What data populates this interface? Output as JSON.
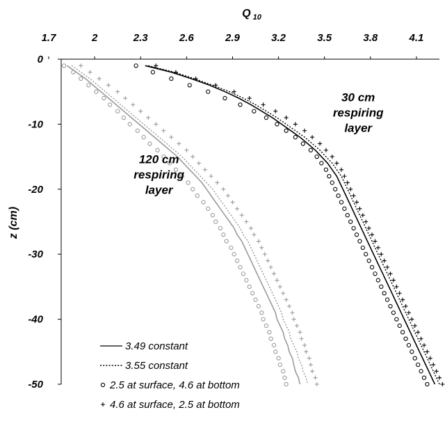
{
  "chart_data": {
    "type": "line",
    "xlabel": "Q",
    "xlabel_sub": "10",
    "ylabel": "z (cm)",
    "xlim": [
      1.7,
      4.25
    ],
    "ylim": [
      -50,
      0
    ],
    "x_ticks": [
      "1.7",
      "2",
      "2.3",
      "2.6",
      "2.9",
      "3.2",
      "3.5",
      "3.8",
      "4.1"
    ],
    "y_ticks": [
      "0",
      "-10",
      "-20",
      "-30",
      "-40",
      "-50"
    ],
    "x_axis_position": "top",
    "grid": false,
    "legend_position": "bottom-left",
    "annotations": [
      {
        "lines": [
          "30 cm",
          "respiring",
          "layer"
        ],
        "anchor": [
          3.72,
          -6.5
        ]
      },
      {
        "lines": [
          "120 cm",
          "respiring",
          "layer"
        ],
        "anchor": [
          2.42,
          -16
        ]
      }
    ],
    "z": [
      -1,
      -2,
      -3,
      -4,
      -5,
      -6,
      -7,
      -8,
      -9,
      -10,
      -11,
      -12,
      -13,
      -14,
      -15,
      -16,
      -17,
      -18,
      -19,
      -20,
      -21,
      -22,
      -23,
      -24,
      -25,
      -26,
      -27,
      -28,
      -29,
      -30,
      -31,
      -32,
      -33,
      -34,
      -35,
      -36,
      -37,
      -38,
      -39,
      -40,
      -41,
      -42,
      -43,
      -44,
      -45,
      -46,
      -47,
      -48,
      -49,
      -50
    ],
    "series": [
      {
        "name": "3.49 constant",
        "style": "solid",
        "color": "#000000",
        "layer": "30 cm",
        "x": [
          2.33,
          2.5,
          2.63,
          2.75,
          2.85,
          2.94,
          3.02,
          3.09,
          3.16,
          3.22,
          3.28,
          3.34,
          3.39,
          3.44,
          3.48,
          3.52,
          3.55,
          3.58,
          3.6,
          3.62,
          3.64,
          3.66,
          3.68,
          3.7,
          3.72,
          3.74,
          3.76,
          3.78,
          3.8,
          3.82,
          3.84,
          3.86,
          3.88,
          3.9,
          3.92,
          3.94,
          3.96,
          3.98,
          4.0,
          4.02,
          4.04,
          4.06,
          4.08,
          4.1,
          4.12,
          4.14,
          4.16,
          4.18,
          4.2,
          4.22
        ]
      },
      {
        "name": "3.55 constant",
        "style": "dotted",
        "color": "#000000",
        "layer": "30 cm",
        "x": [
          2.35,
          2.52,
          2.65,
          2.77,
          2.88,
          2.97,
          3.05,
          3.12,
          3.19,
          3.25,
          3.31,
          3.37,
          3.42,
          3.47,
          3.51,
          3.55,
          3.58,
          3.61,
          3.63,
          3.65,
          3.67,
          3.69,
          3.71,
          3.73,
          3.75,
          3.77,
          3.79,
          3.81,
          3.83,
          3.85,
          3.87,
          3.89,
          3.91,
          3.93,
          3.95,
          3.97,
          3.99,
          4.01,
          4.03,
          4.05,
          4.07,
          4.09,
          4.11,
          4.13,
          4.15,
          4.17,
          4.19,
          4.21,
          4.23,
          4.25
        ]
      },
      {
        "name": "2.5 at surface, 4.6 at bottom",
        "style": "circle",
        "color": "#000000",
        "layer": "30 cm",
        "x": [
          2.27,
          2.38,
          2.5,
          2.62,
          2.74,
          2.85,
          2.95,
          3.04,
          3.12,
          3.19,
          3.25,
          3.31,
          3.36,
          3.41,
          3.45,
          3.48,
          3.51,
          3.53,
          3.55,
          3.57,
          3.59,
          3.61,
          3.63,
          3.65,
          3.67,
          3.69,
          3.71,
          3.73,
          3.75,
          3.77,
          3.79,
          3.81,
          3.83,
          3.85,
          3.87,
          3.89,
          3.91,
          3.93,
          3.95,
          3.97,
          3.99,
          4.01,
          4.03,
          4.05,
          4.07,
          4.09,
          4.11,
          4.13,
          4.15,
          4.17
        ]
      },
      {
        "name": "4.6 at surface, 2.5 at bottom",
        "style": "plus",
        "color": "#000000",
        "layer": "30 cm",
        "x": [
          2.4,
          2.53,
          2.66,
          2.79,
          2.91,
          3.01,
          3.1,
          3.18,
          3.25,
          3.31,
          3.37,
          3.42,
          3.47,
          3.51,
          3.55,
          3.58,
          3.61,
          3.63,
          3.65,
          3.67,
          3.69,
          3.71,
          3.73,
          3.75,
          3.77,
          3.79,
          3.81,
          3.83,
          3.85,
          3.87,
          3.89,
          3.91,
          3.93,
          3.95,
          3.97,
          3.99,
          4.01,
          4.03,
          4.05,
          4.07,
          4.09,
          4.11,
          4.13,
          4.15,
          4.17,
          4.19,
          4.21,
          4.23,
          4.25,
          4.27
        ]
      },
      {
        "name": "3.49 constant",
        "style": "solid",
        "color": "#9a9a9a",
        "layer": "120 cm",
        "x": [
          1.82,
          1.88,
          1.94,
          1.99,
          2.04,
          2.09,
          2.14,
          2.19,
          2.24,
          2.29,
          2.34,
          2.39,
          2.44,
          2.49,
          2.54,
          2.58,
          2.62,
          2.66,
          2.7,
          2.73,
          2.76,
          2.79,
          2.82,
          2.85,
          2.88,
          2.91,
          2.93,
          2.96,
          2.98,
          3.0,
          3.02,
          3.04,
          3.06,
          3.08,
          3.1,
          3.12,
          3.14,
          3.16,
          3.18,
          3.19,
          3.21,
          3.23,
          3.24,
          3.26,
          3.27,
          3.29,
          3.3,
          3.31,
          3.33,
          3.34
        ]
      },
      {
        "name": "3.55 constant",
        "style": "dotted",
        "color": "#9a9a9a",
        "layer": "120 cm",
        "x": [
          1.85,
          1.91,
          1.97,
          2.02,
          2.07,
          2.12,
          2.17,
          2.22,
          2.27,
          2.32,
          2.37,
          2.42,
          2.47,
          2.52,
          2.57,
          2.61,
          2.65,
          2.69,
          2.73,
          2.77,
          2.8,
          2.83,
          2.86,
          2.89,
          2.92,
          2.95,
          2.97,
          3.0,
          3.02,
          3.04,
          3.06,
          3.08,
          3.1,
          3.12,
          3.14,
          3.16,
          3.18,
          3.2,
          3.22,
          3.23,
          3.25,
          3.27,
          3.28,
          3.3,
          3.32,
          3.33,
          3.35,
          3.36,
          3.38,
          3.39
        ]
      },
      {
        "name": "2.5 at surface, 4.6 at bottom",
        "style": "circle",
        "color": "#9a9a9a",
        "layer": "120 cm",
        "x": [
          1.8,
          1.86,
          1.91,
          1.96,
          2.01,
          2.06,
          2.1,
          2.15,
          2.19,
          2.23,
          2.28,
          2.32,
          2.36,
          2.41,
          2.45,
          2.49,
          2.53,
          2.57,
          2.61,
          2.64,
          2.67,
          2.71,
          2.74,
          2.77,
          2.79,
          2.82,
          2.84,
          2.86,
          2.89,
          2.91,
          2.93,
          2.95,
          2.97,
          2.99,
          3.01,
          3.03,
          3.05,
          3.07,
          3.09,
          3.1,
          3.12,
          3.14,
          3.15,
          3.17,
          3.18,
          3.2,
          3.21,
          3.23,
          3.24,
          3.25
        ]
      },
      {
        "name": "4.6 at surface, 2.5 at bottom",
        "style": "plus",
        "color": "#9a9a9a",
        "layer": "120 cm",
        "x": [
          1.91,
          1.97,
          2.03,
          2.09,
          2.15,
          2.2,
          2.25,
          2.3,
          2.35,
          2.4,
          2.45,
          2.5,
          2.55,
          2.6,
          2.64,
          2.68,
          2.72,
          2.76,
          2.8,
          2.84,
          2.87,
          2.9,
          2.93,
          2.96,
          2.99,
          3.02,
          3.04,
          3.07,
          3.09,
          3.11,
          3.13,
          3.15,
          3.17,
          3.19,
          3.21,
          3.23,
          3.25,
          3.27,
          3.29,
          3.3,
          3.32,
          3.34,
          3.35,
          3.37,
          3.38,
          3.4,
          3.41,
          3.42,
          3.44,
          3.45
        ]
      }
    ],
    "legend": [
      {
        "label": "3.49 constant",
        "style": "solid"
      },
      {
        "label": "3.55 constant",
        "style": "dotted"
      },
      {
        "label": "2.5 at surface, 4.6 at bottom",
        "style": "circle"
      },
      {
        "label": "4.6 at surface, 2.5 at bottom",
        "style": "plus"
      }
    ]
  }
}
